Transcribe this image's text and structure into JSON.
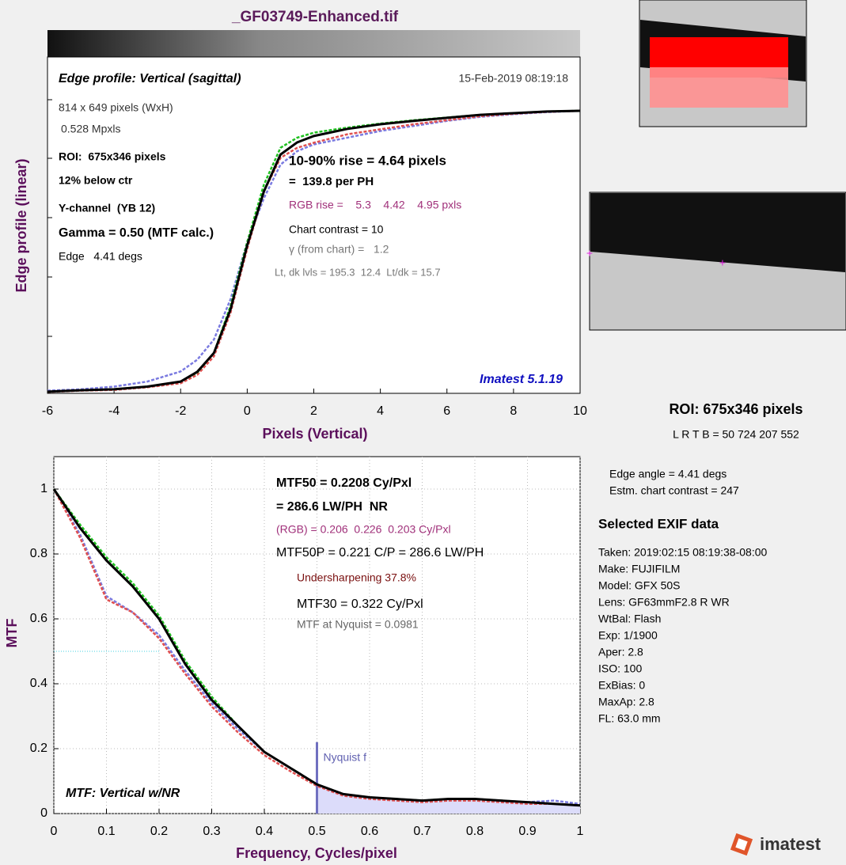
{
  "title": "_GF03749-Enhanced.tif",
  "chart_data": [
    {
      "type": "line",
      "title": "Edge profile: Vertical (sagittal)",
      "date": "15-Feb-2019 08:19:18",
      "x_label": "Pixels (Vertical)",
      "y_label": "Edge profile (linear)",
      "x": [
        -6,
        -5,
        -4,
        -3,
        -2,
        -1.5,
        -1,
        -0.5,
        0,
        0.5,
        1,
        1.5,
        2,
        3,
        4,
        5,
        6,
        7,
        8,
        9,
        10
      ],
      "series": [
        {
          "color": "#7a7ae0",
          "dash": true,
          "values": [
            0.008,
            0.012,
            0.02,
            0.035,
            0.065,
            0.1,
            0.16,
            0.28,
            0.45,
            0.58,
            0.68,
            0.72,
            0.74,
            0.76,
            0.78,
            0.795,
            0.81,
            0.822,
            0.83,
            0.836,
            0.84
          ]
        },
        {
          "color": "#e05050",
          "dash": true,
          "values": [
            0.004,
            0.008,
            0.01,
            0.018,
            0.03,
            0.055,
            0.11,
            0.24,
            0.43,
            0.6,
            0.7,
            0.73,
            0.745,
            0.77,
            0.785,
            0.8,
            0.812,
            0.824,
            0.831,
            0.837,
            0.84
          ]
        },
        {
          "color": "#20c020",
          "dash": true,
          "values": [
            0.005,
            0.009,
            0.012,
            0.02,
            0.035,
            0.062,
            0.12,
            0.26,
            0.45,
            0.62,
            0.73,
            0.76,
            0.775,
            0.79,
            0.802,
            0.812,
            0.82,
            0.828,
            0.833,
            0.838,
            0.84
          ]
        },
        {
          "color": "#000000",
          "dash": false,
          "values": [
            0.005,
            0.009,
            0.012,
            0.02,
            0.035,
            0.064,
            0.12,
            0.25,
            0.44,
            0.6,
            0.71,
            0.746,
            0.765,
            0.786,
            0.8,
            0.81,
            0.819,
            0.828,
            0.833,
            0.838,
            0.84
          ]
        }
      ],
      "xlim": [
        -6,
        10
      ],
      "xticks": [
        -6,
        -4,
        -2,
        0,
        2,
        4,
        6,
        8,
        10
      ],
      "ylim": [
        0,
        1
      ],
      "grid": false,
      "annotations": [
        {
          "text": "814 x 649 pixels (WxH)",
          "color": "#333333"
        },
        {
          "text": "0.528 Mpxls",
          "color": "#333333"
        },
        {
          "text": "ROI:  675x346 pixels",
          "color": "#000000"
        },
        {
          "text": "12% below ctr",
          "color": "#000000"
        },
        {
          "text": "Y-channel  (YB 12)",
          "color": "#000000"
        },
        {
          "text": "Gamma = 0.50 (MTF calc.)",
          "color": "#000000"
        },
        {
          "text": "Edge   4.41 degs",
          "color": "#000000"
        },
        {
          "text": "10-90% rise = 4.64 pixels",
          "color": "#000000"
        },
        {
          "text": "=  139.8 per PH",
          "color": "#000000"
        },
        {
          "text": "RGB rise =    5.3    4.42    4.95 pxls",
          "color": "#a0307a"
        },
        {
          "text": "Chart contrast = 10",
          "color": "#000000"
        },
        {
          "text": "γ (from chart) =   1.2",
          "color": "#777777"
        },
        {
          "text": "Lt, dk lvls = 195.3  12.4  Lt/dk = 15.7",
          "color": "#777777"
        }
      ],
      "watermark": "Imatest 5.1.19"
    },
    {
      "type": "line",
      "title": "MTF: Vertical w/NR",
      "x_label": "Frequency, Cycles/pixel",
      "y_label": "MTF",
      "x": [
        0,
        0.05,
        0.1,
        0.15,
        0.2,
        0.25,
        0.3,
        0.35,
        0.4,
        0.45,
        0.5,
        0.55,
        0.6,
        0.65,
        0.7,
        0.75,
        0.8,
        0.85,
        0.9,
        0.95,
        1
      ],
      "series": [
        {
          "color": "#7a7ae0",
          "dash": true,
          "values": [
            1,
            0.86,
            0.67,
            0.62,
            0.55,
            0.44,
            0.34,
            0.26,
            0.19,
            0.14,
            0.09,
            0.06,
            0.05,
            0.045,
            0.04,
            0.045,
            0.045,
            0.04,
            0.035,
            0.04,
            0.03
          ]
        },
        {
          "color": "#e05050",
          "dash": true,
          "values": [
            1,
            0.85,
            0.66,
            0.62,
            0.54,
            0.43,
            0.33,
            0.25,
            0.18,
            0.13,
            0.085,
            0.055,
            0.045,
            0.04,
            0.035,
            0.04,
            0.04,
            0.035,
            0.03,
            0.03,
            0.025
          ]
        },
        {
          "color": "#20c020",
          "dash": true,
          "values": [
            1,
            0.89,
            0.79,
            0.71,
            0.61,
            0.47,
            0.36,
            0.27,
            0.19,
            0.14,
            0.09,
            0.06,
            0.05,
            0.045,
            0.04,
            0.045,
            0.045,
            0.04,
            0.035,
            0.03,
            0.025
          ]
        },
        {
          "color": "#000000",
          "dash": false,
          "values": [
            1,
            0.88,
            0.78,
            0.7,
            0.6,
            0.46,
            0.35,
            0.27,
            0.19,
            0.14,
            0.09,
            0.06,
            0.05,
            0.045,
            0.04,
            0.045,
            0.045,
            0.04,
            0.035,
            0.03,
            0.025
          ]
        }
      ],
      "xlim": [
        0,
        1
      ],
      "xticks": [
        0,
        0.1,
        0.2,
        0.3,
        0.4,
        0.5,
        0.6,
        0.7,
        0.8,
        0.9,
        1
      ],
      "ylim": [
        0,
        1.1
      ],
      "yticks": [
        0,
        0.2,
        0.4,
        0.6,
        0.8,
        1
      ],
      "grid": true,
      "nyquist": {
        "x": 0.5,
        "label": "Nyquist f"
      },
      "half_level": 0.5,
      "annotations": [
        {
          "text": "MTF50 = 0.2208 Cy/Pxl",
          "color": "#000000"
        },
        {
          "text": "= 286.6 LW/PH  NR",
          "color": "#000000"
        },
        {
          "text": "(RGB) = 0.206  0.226  0.203 Cy/Pxl",
          "color": "#a0307a"
        },
        {
          "text": "MTF50P = 0.221 C/P = 286.6 LW/PH",
          "color": "#000000"
        },
        {
          "text": "Undersharpening 37.8%",
          "color": "#7a1010"
        },
        {
          "text": "MTF30 = 0.322 Cy/Pxl",
          "color": "#000000"
        },
        {
          "text": "MTF at Nyquist = 0.0981",
          "color": "#666666"
        }
      ]
    }
  ],
  "side_panel": {
    "roi": "ROI:  675x346 pixels",
    "lrtb": "L R  T B = 50 724  207 552",
    "edge_angle": "Edge angle = 4.41 degs",
    "contrast": "Estm. chart contrast = 247",
    "exif_title": "Selected EXIF data",
    "exif": [
      "Taken: 2019:02:15 08:19:38-08:00",
      "Make:  FUJIFILM",
      "Model:  GFX 50S",
      "Lens:   GF63mmF2.8 R WR",
      "WtBal: Flash",
      "Exp:     1/1900",
      "Aper:    2.8",
      "ISO:     100",
      "ExBias: 0",
      "MaxAp: 2.8",
      "FL:      63.0 mm"
    ]
  },
  "logo": "imatest"
}
